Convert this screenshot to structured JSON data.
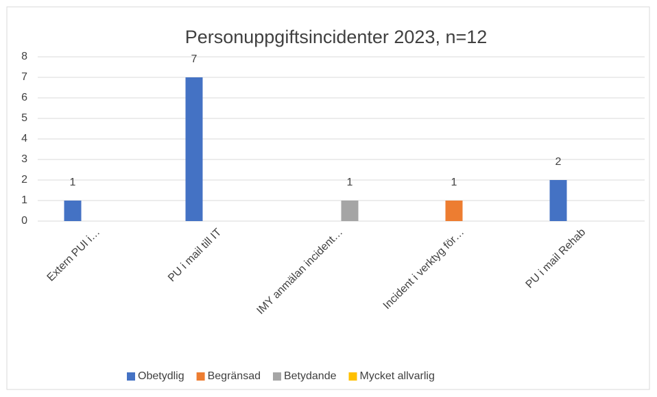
{
  "chart_data": {
    "type": "bar",
    "title": "Personuppgiftsincidenter 2023, n=12",
    "categories": [
      "Extern PUI i…",
      "PU i mail till IT",
      "IMY anmälan incident…",
      "Incident i verktyg för…",
      "PU i mail Rehab"
    ],
    "series": [
      {
        "name": "Obetydlig",
        "color": "#4472c4",
        "values": [
          1,
          7,
          null,
          null,
          2
        ]
      },
      {
        "name": "Begränsad",
        "color": "#ed7d31",
        "values": [
          null,
          null,
          null,
          1,
          null
        ]
      },
      {
        "name": "Betydande",
        "color": "#a5a5a5",
        "values": [
          null,
          null,
          1,
          null,
          null
        ]
      },
      {
        "name": "Mycket allvarlig",
        "color": "#ffc000",
        "values": [
          null,
          null,
          null,
          null,
          null
        ]
      }
    ],
    "ylim": [
      0,
      8
    ],
    "yticks": [
      0,
      1,
      2,
      3,
      4,
      5,
      6,
      7,
      8
    ],
    "grid": true,
    "legend": "bottom"
  }
}
